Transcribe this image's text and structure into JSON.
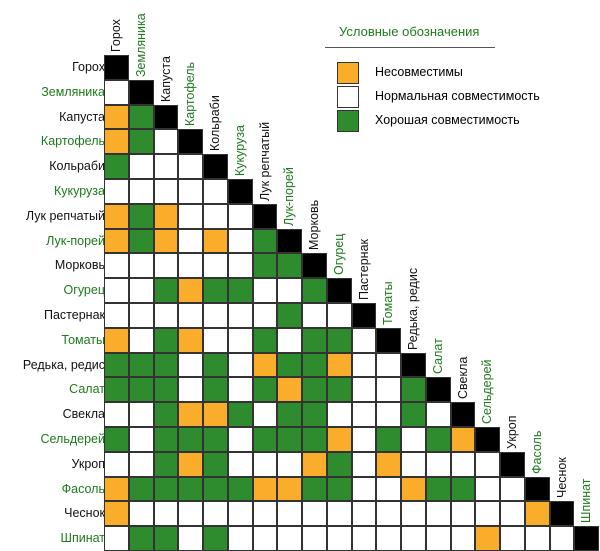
{
  "colors": {
    "incompatible": "#f9ad2b",
    "normal": "#ffffff",
    "good": "#2e8b2e",
    "diagonal": "#000000",
    "label_black": "#111111",
    "label_green": "#1f7a1f"
  },
  "legend": {
    "title": "Условные обозначения",
    "items": [
      {
        "key": "I",
        "label": "Несовместимы"
      },
      {
        "key": "N",
        "label": "Нормальная совместимость"
      },
      {
        "key": "G",
        "label": "Хорошая совместимость"
      }
    ]
  },
  "plants": [
    {
      "name": "Горох",
      "color": "black"
    },
    {
      "name": "Земляника",
      "color": "green"
    },
    {
      "name": "Капуста",
      "color": "black"
    },
    {
      "name": "Картофель",
      "color": "green"
    },
    {
      "name": "Кольраби",
      "color": "black"
    },
    {
      "name": "Кукуруза",
      "color": "green"
    },
    {
      "name": "Лук репчатый",
      "color": "black"
    },
    {
      "name": "Лук-порей",
      "color": "green"
    },
    {
      "name": "Морковь",
      "color": "black"
    },
    {
      "name": "Огурец",
      "color": "green"
    },
    {
      "name": "Пастернак",
      "color": "black"
    },
    {
      "name": "Томаты",
      "color": "green"
    },
    {
      "name": "Редька, редис",
      "color": "black"
    },
    {
      "name": "Салат",
      "color": "green"
    },
    {
      "name": "Свекла",
      "color": "black"
    },
    {
      "name": "Сельдерей",
      "color": "green"
    },
    {
      "name": "Укроп",
      "color": "black"
    },
    {
      "name": "Фасоль",
      "color": "green"
    },
    {
      "name": "Чеснок",
      "color": "black"
    },
    {
      "name": "Шпинат",
      "color": "green"
    }
  ],
  "matrix": [
    "",
    "N",
    "IG",
    "IGN",
    "GNNN",
    "NNNNN",
    "IGINNN",
    "IGINING",
    "NNNNNNGG",
    "NNGIGGNNG",
    "NNNNNNNGNN",
    "INGINNGNGGN",
    "GGGNGNIGGINN",
    "GGGNGNGIGGNNG",
    "NNGIIGNGGNNNGN",
    "GNGGGNGGGINGNGI",
    "NNGIGNNNIGNINNNN",
    "IGGGGGIIGGNNIGGNN",
    "INNNNNNNNNNNNNNNNI",
    "NGGNGNNNNNNNNNNINNN"
  ]
}
